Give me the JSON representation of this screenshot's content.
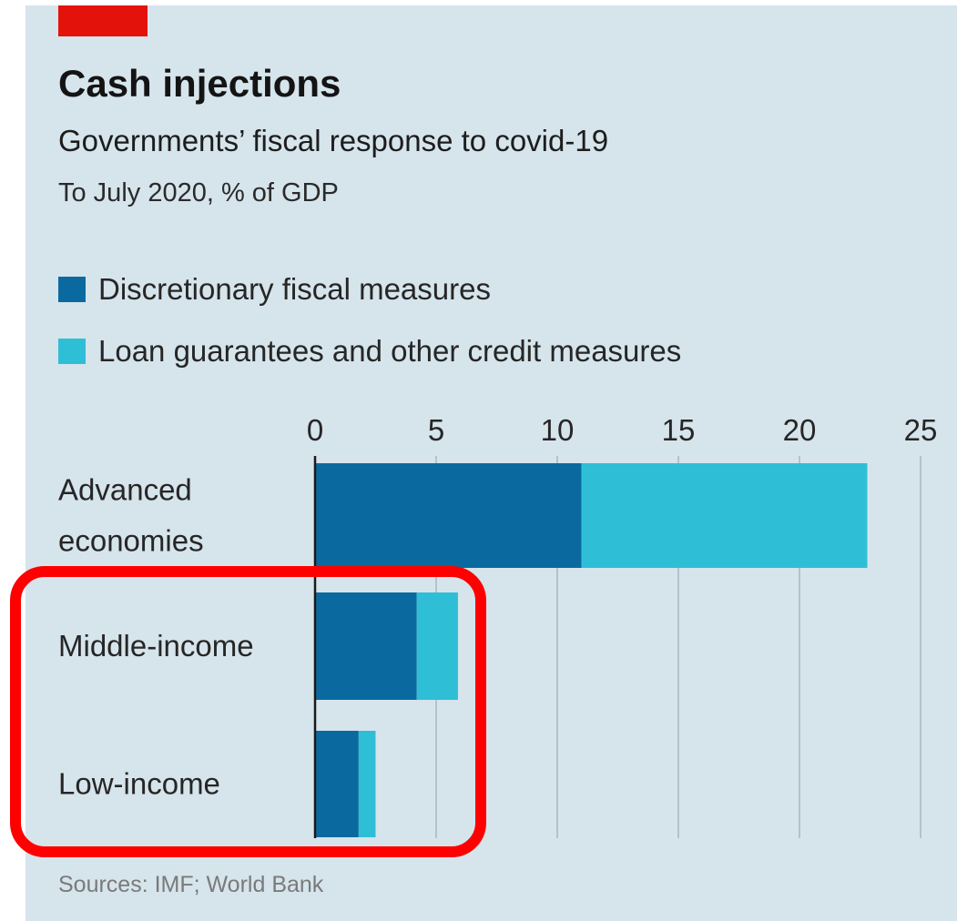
{
  "header": {
    "title": "Cash injections",
    "subtitle": "Governments’ fiscal response to covid-19",
    "unit_note": "To July 2020, % of GDP"
  },
  "colors": {
    "background": "#d6e4ec",
    "brand_tag": "#e3120b",
    "discretionary": "#0a6aa0",
    "loan_guarantees": "#2ebfd6",
    "grid": "#b2c3cd",
    "highlight": "#ff0000"
  },
  "legend": [
    {
      "label": "Discretionary fiscal measures"
    },
    {
      "label": "Loan guarantees and other credit measures"
    }
  ],
  "chart_data": {
    "type": "bar",
    "orientation": "horizontal",
    "stacked": true,
    "categories": [
      "Advanced\neconomies",
      "Middle-income",
      "Low-income"
    ],
    "series": [
      {
        "name": "Discretionary fiscal measures",
        "values": [
          11.0,
          4.2,
          1.8
        ]
      },
      {
        "name": "Loan guarantees and other credit measures",
        "values": [
          11.8,
          1.7,
          0.7
        ]
      }
    ],
    "xlim": [
      0,
      25
    ],
    "xticks": [
      0,
      5,
      10,
      15,
      20,
      25
    ],
    "grid": true,
    "legend_position": "top-left"
  },
  "source": "Sources: IMF; World Bank",
  "annotation": {
    "type": "highlight-box",
    "covers": [
      "Middle-income",
      "Low-income"
    ]
  }
}
